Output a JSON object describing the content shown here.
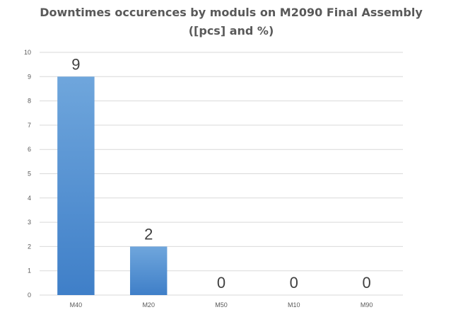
{
  "chart_data": {
    "type": "bar",
    "title_line1": "Downtimes occurences by moduls on M2090 Final Assembly",
    "title_line2": "([pcs] and %)",
    "categories": [
      "M40",
      "M20",
      "M50",
      "M10",
      "M90"
    ],
    "values": [
      9,
      2,
      0,
      0,
      0
    ],
    "data_labels": [
      "9",
      "2",
      "0",
      "0",
      "0"
    ],
    "ylim": [
      0,
      10
    ],
    "yticks": [
      "0",
      "1",
      "2",
      "3",
      "4",
      "5",
      "6",
      "7",
      "8",
      "9",
      "10"
    ],
    "grid": true,
    "legend": "none",
    "colors": {
      "bar_top": "#6fa6dc",
      "bar_bottom": "#3f7fc8",
      "grid": "#d9d9d9",
      "text": "#595959"
    }
  }
}
